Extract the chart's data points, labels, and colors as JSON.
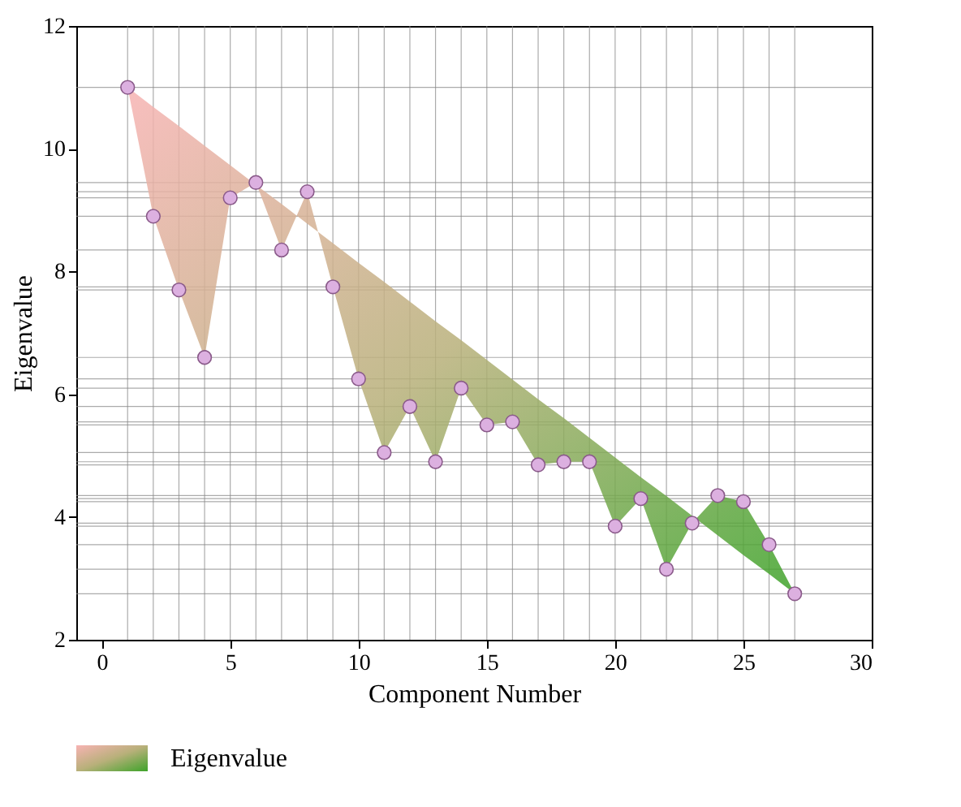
{
  "chart_data": {
    "type": "scatter",
    "xlabel": "Component Number",
    "ylabel": "Eigenvalue",
    "x": [
      1,
      2,
      3,
      4,
      5,
      6,
      7,
      8,
      9,
      10,
      11,
      12,
      13,
      14,
      15,
      16,
      17,
      18,
      19,
      20,
      21,
      22,
      23,
      24,
      25,
      26,
      27
    ],
    "series": [
      {
        "name": "Eigenvalue",
        "color": "#dcb0e0",
        "values": [
          11.0,
          8.9,
          7.7,
          6.6,
          9.2,
          9.45,
          8.35,
          9.3,
          7.75,
          6.25,
          5.05,
          5.8,
          4.9,
          6.1,
          5.5,
          5.55,
          4.85,
          4.9,
          4.9,
          3.85,
          4.3,
          3.15,
          3.9,
          4.35,
          4.25,
          3.55,
          2.75
        ],
        "upper": [
          11.0,
          8.9,
          7.7,
          6.6,
          9.2,
          9.45,
          8.35,
          9.3,
          7.75,
          6.25,
          5.05,
          5.8,
          4.9,
          6.1,
          5.5,
          5.55,
          4.85,
          4.9,
          4.9,
          3.85,
          4.3,
          3.15,
          3.9,
          4.35,
          4.25,
          3.55,
          2.75
        ],
        "lower": [
          11.0,
          10.68,
          10.37,
          10.05,
          9.73,
          9.41,
          9.1,
          8.78,
          8.46,
          8.14,
          7.83,
          7.51,
          7.19,
          6.88,
          6.56,
          6.24,
          5.92,
          5.61,
          5.29,
          4.97,
          4.65,
          4.34,
          4.02,
          3.7,
          3.38,
          3.07,
          2.75
        ]
      }
    ],
    "ref_lines": [
      {
        "axis": "x",
        "value": 1
      },
      {
        "axis": "x",
        "value": 2
      },
      {
        "axis": "x",
        "value": 3
      },
      {
        "axis": "x",
        "value": 4
      },
      {
        "axis": "x",
        "value": 5
      },
      {
        "axis": "x",
        "value": 6
      },
      {
        "axis": "x",
        "value": 7
      },
      {
        "axis": "x",
        "value": 8
      },
      {
        "axis": "x",
        "value": 9
      },
      {
        "axis": "x",
        "value": 10
      },
      {
        "axis": "x",
        "value": 11
      },
      {
        "axis": "x",
        "value": 12
      },
      {
        "axis": "x",
        "value": 13
      },
      {
        "axis": "x",
        "value": 14
      },
      {
        "axis": "x",
        "value": 15
      },
      {
        "axis": "x",
        "value": 16
      },
      {
        "axis": "x",
        "value": 17
      },
      {
        "axis": "x",
        "value": 18
      },
      {
        "axis": "x",
        "value": 19
      },
      {
        "axis": "x",
        "value": 20
      },
      {
        "axis": "x",
        "value": 21
      },
      {
        "axis": "x",
        "value": 22
      },
      {
        "axis": "x",
        "value": 23
      },
      {
        "axis": "x",
        "value": 24
      },
      {
        "axis": "x",
        "value": 25
      },
      {
        "axis": "x",
        "value": 26
      },
      {
        "axis": "x",
        "value": 27
      },
      {
        "axis": "y",
        "value": 11.0
      },
      {
        "axis": "y",
        "value": 8.9
      },
      {
        "axis": "y",
        "value": 7.7
      },
      {
        "axis": "y",
        "value": 6.6
      },
      {
        "axis": "y",
        "value": 9.2
      },
      {
        "axis": "y",
        "value": 9.45
      },
      {
        "axis": "y",
        "value": 8.35
      },
      {
        "axis": "y",
        "value": 9.3
      },
      {
        "axis": "y",
        "value": 7.75
      },
      {
        "axis": "y",
        "value": 6.25
      },
      {
        "axis": "y",
        "value": 5.05
      },
      {
        "axis": "y",
        "value": 5.8
      },
      {
        "axis": "y",
        "value": 4.9
      },
      {
        "axis": "y",
        "value": 6.1
      },
      {
        "axis": "y",
        "value": 5.5
      },
      {
        "axis": "y",
        "value": 5.55
      },
      {
        "axis": "y",
        "value": 4.85
      },
      {
        "axis": "y",
        "value": 3.85
      },
      {
        "axis": "y",
        "value": 4.3
      },
      {
        "axis": "y",
        "value": 3.15
      },
      {
        "axis": "y",
        "value": 3.9
      },
      {
        "axis": "y",
        "value": 4.35
      },
      {
        "axis": "y",
        "value": 4.25
      },
      {
        "axis": "y",
        "value": 3.55
      },
      {
        "axis": "y",
        "value": 2.75
      }
    ],
    "xlim": [
      -1,
      30
    ],
    "xticks": [
      0,
      5,
      10,
      15,
      20,
      25,
      30
    ],
    "ylim": [
      2,
      12
    ],
    "yticks": [
      2,
      4,
      6,
      8,
      10,
      12
    ],
    "marker": "circle",
    "legend": "bottom"
  }
}
